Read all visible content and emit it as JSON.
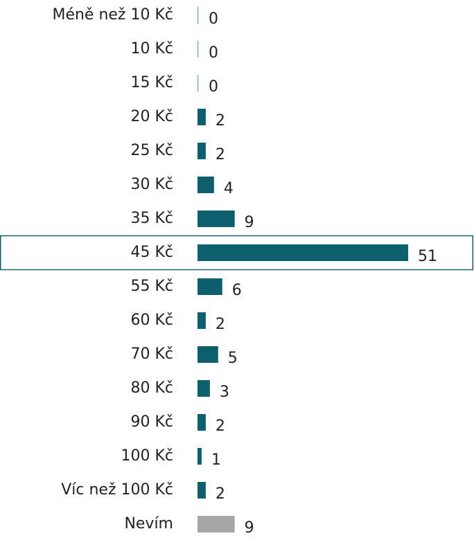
{
  "chart_data": {
    "type": "bar",
    "orientation": "horizontal",
    "categories": [
      "Méně než 10 Kč",
      "10 Kč",
      "15 Kč",
      "20 Kč",
      "25 Kč",
      "30 Kč",
      "35 Kč",
      "45 Kč",
      "55 Kč",
      "60 Kč",
      "70 Kč",
      "80 Kč",
      "90 Kč",
      "100 Kč",
      "Víc než 100 Kč",
      "Nevím"
    ],
    "values": [
      0,
      0,
      0,
      2,
      2,
      4,
      9,
      51,
      6,
      2,
      5,
      3,
      2,
      1,
      2,
      9
    ],
    "colors": [
      "#0e5f6e",
      "#0e5f6e",
      "#0e5f6e",
      "#0e5f6e",
      "#0e5f6e",
      "#0e5f6e",
      "#0e5f6e",
      "#0e5f6e",
      "#0e5f6e",
      "#0e5f6e",
      "#0e5f6e",
      "#0e5f6e",
      "#0e5f6e",
      "#0e5f6e",
      "#0e5f6e",
      "#a6a6a6"
    ],
    "highlight_index": 7,
    "highlight_color": "#1b5e6e"
  }
}
